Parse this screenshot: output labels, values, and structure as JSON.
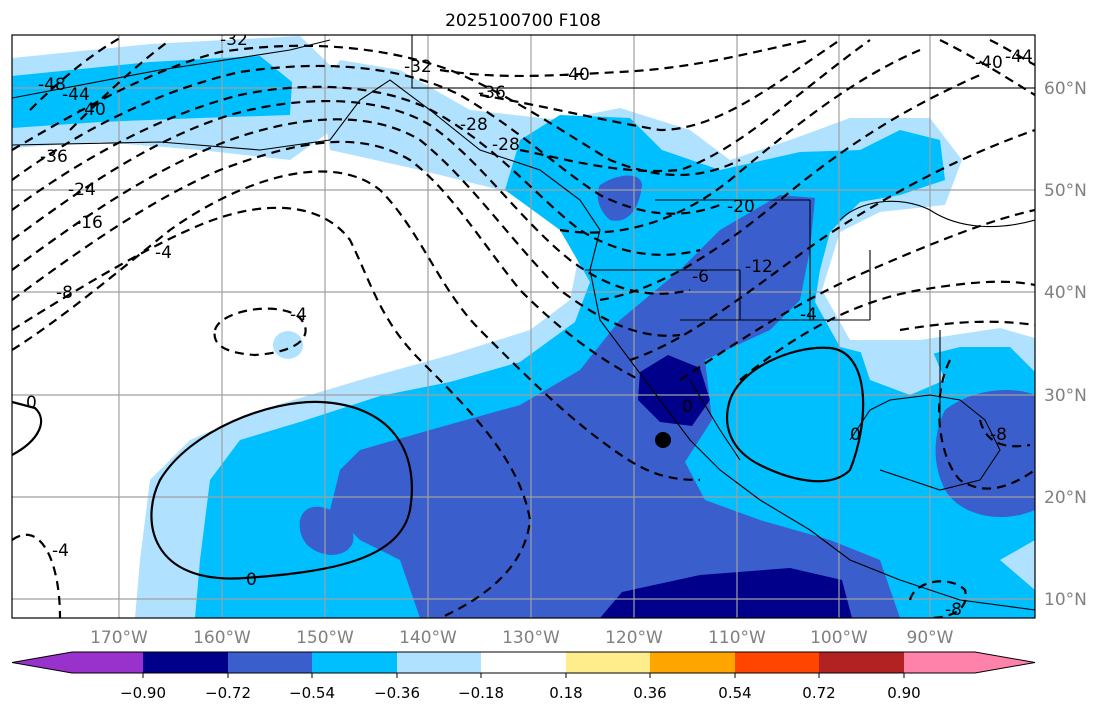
{
  "chart_data": {
    "type": "heatmap",
    "title": "2025100700 F108",
    "projection": "map",
    "x_ticks": [
      "170°W",
      "160°W",
      "150°W",
      "140°W",
      "130°W",
      "120°W",
      "110°W",
      "100°W",
      "90°W"
    ],
    "y_ticks": [
      "60°N",
      "50°N",
      "40°N",
      "30°N",
      "20°N",
      "10°N"
    ],
    "lon_range": [
      -180,
      -80
    ],
    "lat_range": [
      8,
      65
    ],
    "grid": true,
    "colorbar": {
      "orientation": "horizontal",
      "placement": "bottom",
      "levels": [
        -0.9,
        -0.72,
        -0.54,
        -0.36,
        -0.18,
        0.18,
        0.36,
        0.54,
        0.72,
        0.9
      ],
      "tick_labels": [
        "−0.90",
        "−0.72",
        "−0.54",
        "−0.36",
        "−0.18",
        "0.18",
        "0.36",
        "0.54",
        "0.72",
        "0.90"
      ],
      "colors": [
        "#9932cc",
        "#00008b",
        "#3a5fcd",
        "#00bfff",
        "#b0e2ff",
        "#ffffff",
        "#ffec8b",
        "#ffa500",
        "#ff4500",
        "#b22222",
        "#ff82ab"
      ],
      "extend": "both"
    },
    "contour_labels": [
      "-48",
      "-44",
      "-40",
      "-36",
      "-32",
      "-28",
      "-24",
      "-16",
      "-8",
      "-4",
      "-4",
      "0",
      "0",
      "0",
      "-40",
      "-36",
      "-32",
      "-28",
      "-20",
      "-12",
      "-6",
      "-4",
      "0",
      "-4",
      "-8",
      "-40",
      "-44",
      "-8"
    ],
    "marker": {
      "type": "dot",
      "lon": -116.5,
      "lat": 25.5
    }
  }
}
